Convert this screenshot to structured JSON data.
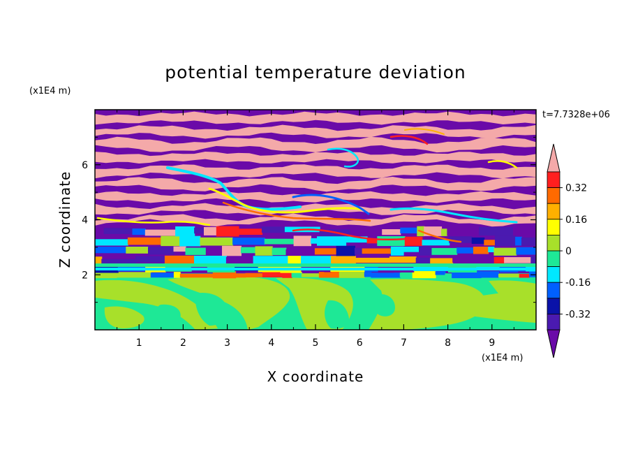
{
  "chart_data": {
    "type": "heatmap",
    "title": "potential temperature deviation",
    "xlabel": "X coordinate",
    "ylabel": "Z coordinate",
    "x_unit": "(x1E4 m)",
    "y_unit": "(x1E4 m)",
    "time_label": "t=7.7328e+06",
    "xlim": [
      0,
      10
    ],
    "ylim": [
      0,
      8
    ],
    "x_ticks": [
      "1",
      "2",
      "3",
      "4",
      "5",
      "6",
      "7",
      "8",
      "9"
    ],
    "y_ticks": [
      "2",
      "4",
      "6"
    ],
    "grid": false,
    "colorbar": {
      "labels": [
        "0.32",
        "0.16",
        "0",
        "-0.16",
        "-0.32"
      ],
      "levels": [
        {
          "range": "> 0.40",
          "color": "#f4a9a9"
        },
        {
          "range": "0.32 to 0.40",
          "color": "#ff1f1f"
        },
        {
          "range": "0.24 to 0.32",
          "color": "#ff6a00"
        },
        {
          "range": "0.16 to 0.24",
          "color": "#ffb000"
        },
        {
          "range": "0.08 to 0.16",
          "color": "#ffff00"
        },
        {
          "range": "0 to 0.08",
          "color": "#a8e02a"
        },
        {
          "range": "-0.08 to 0",
          "color": "#1ee896"
        },
        {
          "range": "-0.16 to -0.08",
          "color": "#00e8ff"
        },
        {
          "range": "-0.24 to -0.16",
          "color": "#0060ff"
        },
        {
          "range": "-0.32 to -0.24",
          "color": "#0a12a8"
        },
        {
          "range": "-0.40 to -0.32",
          "color": "#4a1ab0"
        },
        {
          "range": "< -0.40",
          "color": "#6a0aa8"
        }
      ]
    },
    "field": {
      "lower_layer": {
        "z_range": [
          0,
          2.0
        ],
        "dominant_values": "-0.08 to 0.08"
      },
      "transition_band": {
        "z_range": [
          2.0,
          3.0
        ],
        "dominant_values": "mixed, -0.40 to 0.40"
      },
      "upper_layer": {
        "z_range": [
          3.0,
          8.0
        ],
        "pattern": "alternating horizontal bands of > 0.40 and < -0.40"
      }
    }
  }
}
